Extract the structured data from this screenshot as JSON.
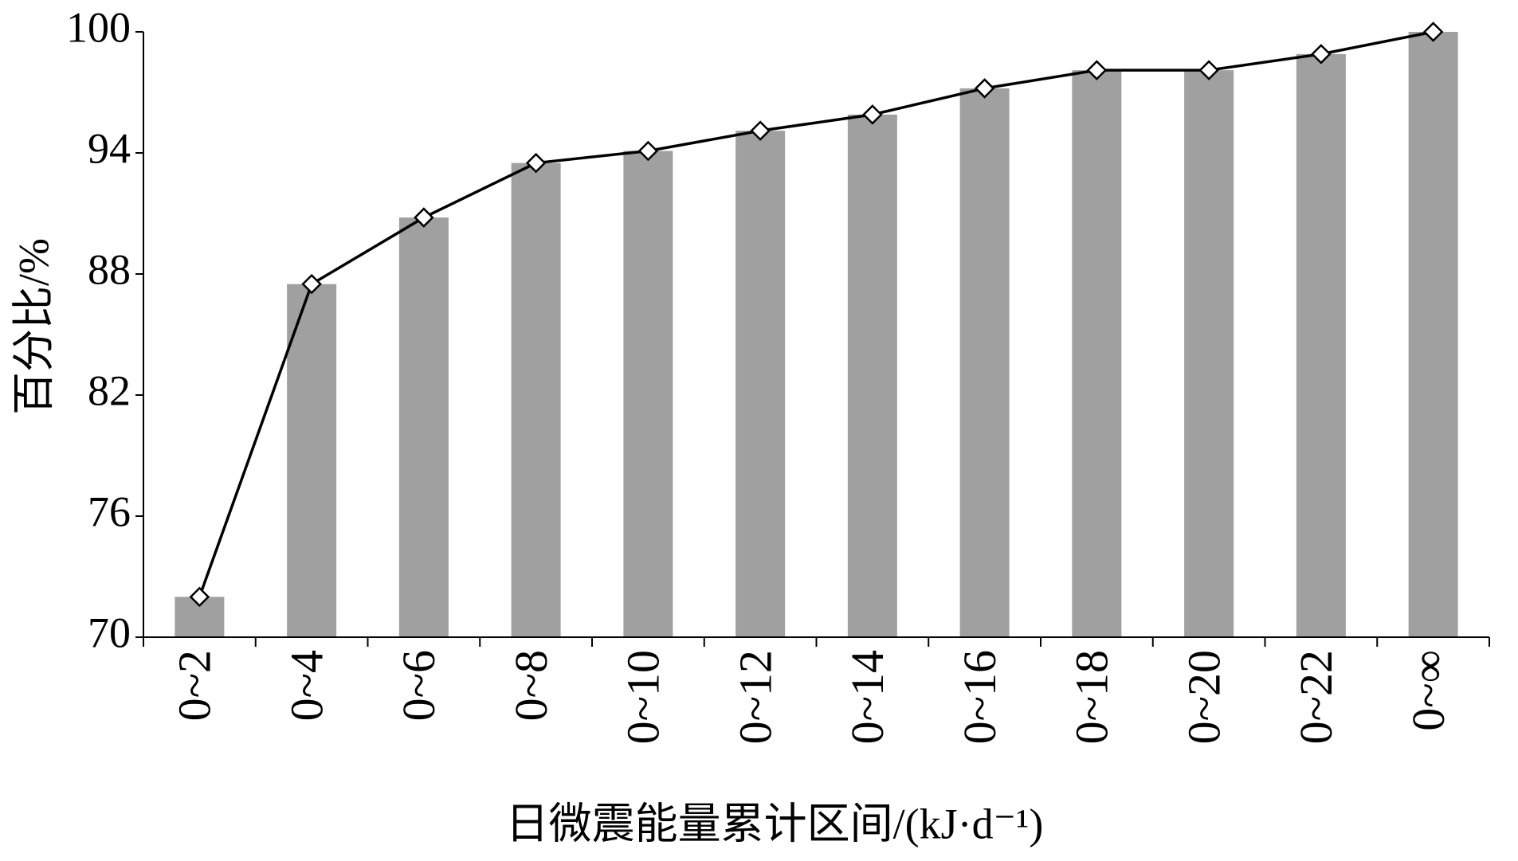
{
  "chart_data": {
    "type": "bar_line",
    "x_label": "日微震能量累计区间/(kJ·d⁻¹)",
    "y_label": "百分比/%",
    "categories": [
      "0~2",
      "0~4",
      "0~6",
      "0~8",
      "0~10",
      "0~12",
      "0~14",
      "0~16",
      "0~18",
      "0~20",
      "0~22",
      "0~∞"
    ],
    "values": [
      72.0,
      87.5,
      90.8,
      93.5,
      94.1,
      95.1,
      95.9,
      97.2,
      98.1,
      98.1,
      98.9,
      100
    ],
    "bar_color": "#a0a0a0",
    "line_color": "#000000",
    "ylim": [
      70,
      100
    ],
    "yticks": [
      70,
      76,
      82,
      88,
      94,
      100
    ]
  }
}
